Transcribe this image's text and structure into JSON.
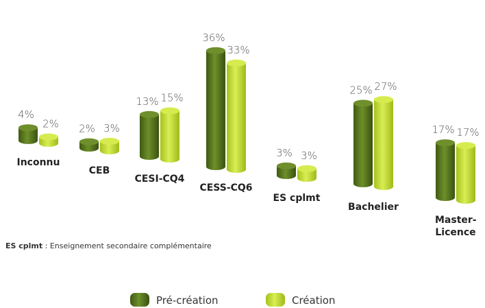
{
  "chart_data": {
    "type": "bar",
    "categories": [
      "Inconnu",
      "CEB",
      "CESI-CQ4",
      "CESS-CQ6",
      "ES cplmt",
      "Bachelier",
      "Master-Licence"
    ],
    "series": [
      {
        "name": "Pré-création",
        "color": "#5b7a1f",
        "values": [
          4,
          2,
          13,
          36,
          3,
          25,
          17
        ],
        "value_labels": [
          "4%",
          "2%",
          "13%",
          "36%",
          "3%",
          "25%",
          "17%"
        ]
      },
      {
        "name": "Création",
        "color": "#c5de30",
        "values": [
          2,
          3,
          15,
          33,
          3,
          27,
          17
        ],
        "value_labels": [
          "2%",
          "3%",
          "15%",
          "33%",
          "3%",
          "27%",
          "17%"
        ]
      }
    ],
    "footnote": {
      "term": "ES cplmt",
      "text": " : Enseignement secondaire complémentaire"
    }
  }
}
